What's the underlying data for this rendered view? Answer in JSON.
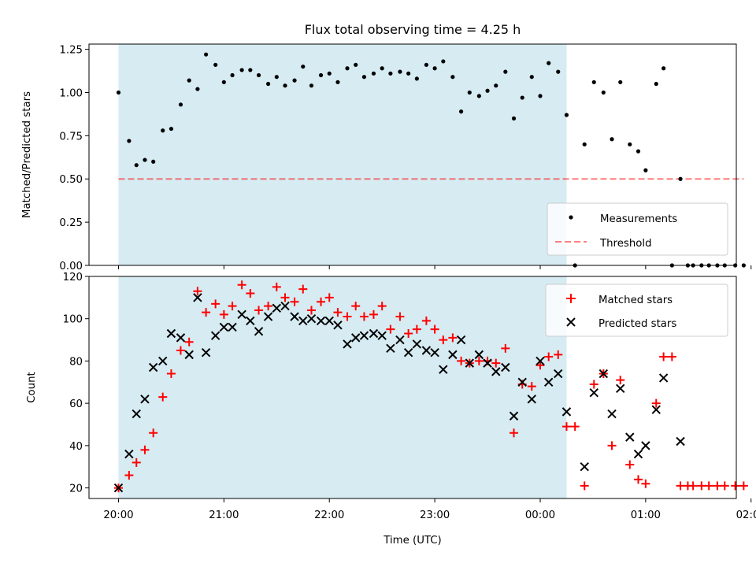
{
  "title": "Flux total observing time = 4.25 h",
  "colors": {
    "highlight": "#add8e6",
    "measurement": "#000000",
    "threshold": "#ff0000",
    "matched": "#ff0000",
    "predicted": "#000000"
  },
  "chart_data": [
    {
      "type": "scatter",
      "ylabel": "Matched/Predicted stars",
      "ylim": [
        0,
        1.28
      ],
      "yticks": [
        "0.00",
        "0.25",
        "0.50",
        "0.75",
        "1.00",
        "1.25"
      ],
      "ytick_values": [
        0,
        0.25,
        0.5,
        0.75,
        1.0,
        1.25
      ],
      "x_unit": "hours since 20:00 UTC",
      "xlim": [
        -0.28,
        5.86
      ],
      "highlight_span": [
        0.0,
        4.25
      ],
      "legend": {
        "placement": "lower-right",
        "entries": [
          "Measurements",
          "Threshold"
        ]
      },
      "threshold": {
        "name": "Threshold",
        "value": 0.5,
        "x_range": [
          0.0,
          5.93
        ]
      },
      "series": [
        {
          "name": "Measurements",
          "x": [
            0.0,
            0.1,
            0.17,
            0.25,
            0.33,
            0.42,
            0.5,
            0.59,
            0.67,
            0.75,
            0.83,
            0.92,
            1.0,
            1.08,
            1.17,
            1.25,
            1.33,
            1.42,
            1.5,
            1.58,
            1.67,
            1.75,
            1.83,
            1.92,
            2.0,
            2.08,
            2.17,
            2.25,
            2.33,
            2.42,
            2.5,
            2.58,
            2.67,
            2.75,
            2.83,
            2.92,
            3.0,
            3.08,
            3.17,
            3.25,
            3.33,
            3.42,
            3.5,
            3.58,
            3.67,
            3.75,
            3.83,
            3.92,
            4.0,
            4.08,
            4.17,
            4.25,
            4.33,
            4.42,
            4.51,
            4.6,
            4.68,
            4.76,
            4.85,
            4.93,
            5.0,
            5.1,
            5.17,
            5.25,
            5.33,
            5.4,
            5.45,
            5.53,
            5.6,
            5.68,
            5.75,
            5.85,
            5.93
          ],
          "y": [
            1.0,
            0.72,
            0.58,
            0.61,
            0.6,
            0.78,
            0.79,
            0.93,
            1.07,
            1.02,
            1.22,
            1.16,
            1.06,
            1.1,
            1.13,
            1.13,
            1.1,
            1.05,
            1.09,
            1.04,
            1.07,
            1.15,
            1.04,
            1.1,
            1.11,
            1.06,
            1.14,
            1.16,
            1.09,
            1.11,
            1.14,
            1.11,
            1.12,
            1.11,
            1.08,
            1.16,
            1.14,
            1.18,
            1.09,
            0.89,
            1.0,
            0.98,
            1.01,
            1.04,
            1.12,
            0.85,
            0.97,
            1.09,
            0.98,
            1.17,
            1.12,
            0.87,
            0.0,
            0.7,
            1.06,
            1.0,
            0.73,
            1.06,
            0.7,
            0.66,
            0.55,
            1.05,
            1.14,
            0.0,
            0.5,
            0.0,
            0.0,
            0.0,
            0.0,
            0.0,
            0.0,
            0.0,
            0.0
          ]
        }
      ]
    },
    {
      "type": "scatter",
      "ylabel": "Count",
      "xlabel": "Time (UTC)",
      "ylim": [
        15,
        120
      ],
      "yticks": [
        "20",
        "40",
        "60",
        "80",
        "100",
        "120"
      ],
      "ytick_values": [
        20,
        40,
        60,
        80,
        100,
        120
      ],
      "x_unit": "hours since 20:00 UTC",
      "xlim": [
        -0.28,
        5.86
      ],
      "xticks": [
        "20:00",
        "21:00",
        "22:00",
        "23:00",
        "00:00",
        "01:00",
        "02:00"
      ],
      "xtick_values": [
        0,
        1,
        2,
        3,
        4,
        5,
        6
      ],
      "highlight_span": [
        0.0,
        4.25
      ],
      "legend": {
        "placement": "upper-right",
        "entries": [
          "Matched stars",
          "Predicted stars"
        ]
      },
      "series": [
        {
          "name": "Matched stars",
          "marker": "+",
          "x": [
            0.0,
            0.1,
            0.17,
            0.25,
            0.33,
            0.42,
            0.5,
            0.59,
            0.67,
            0.75,
            0.83,
            0.92,
            1.0,
            1.08,
            1.17,
            1.25,
            1.33,
            1.42,
            1.5,
            1.58,
            1.67,
            1.75,
            1.83,
            1.92,
            2.0,
            2.08,
            2.17,
            2.25,
            2.33,
            2.42,
            2.5,
            2.58,
            2.67,
            2.75,
            2.83,
            2.92,
            3.0,
            3.08,
            3.17,
            3.25,
            3.33,
            3.42,
            3.5,
            3.58,
            3.67,
            3.75,
            3.83,
            3.92,
            4.0,
            4.08,
            4.17,
            4.25,
            4.33,
            4.42,
            4.51,
            4.6,
            4.68,
            4.76,
            4.85,
            4.93,
            5.0,
            5.1,
            5.17,
            5.25,
            5.33,
            5.4,
            5.45,
            5.53,
            5.6,
            5.68,
            5.75,
            5.85,
            5.93
          ],
          "y": [
            20,
            26,
            32,
            38,
            46,
            63,
            74,
            85,
            89,
            113,
            103,
            107,
            102,
            106,
            116,
            112,
            104,
            106,
            115,
            110,
            108,
            114,
            104,
            108,
            110,
            103,
            101,
            106,
            101,
            102,
            106,
            95,
            101,
            93,
            95,
            99,
            95,
            90,
            91,
            80,
            79,
            80,
            80,
            79,
            86,
            46,
            69,
            68,
            78,
            82,
            83,
            49,
            49,
            21,
            69,
            74,
            40,
            71,
            31,
            24,
            22,
            60,
            82,
            82,
            21,
            21,
            21,
            21,
            21,
            21,
            21,
            21,
            21
          ]
        },
        {
          "name": "Predicted stars",
          "marker": "x",
          "x": [
            0.0,
            0.1,
            0.17,
            0.25,
            0.33,
            0.42,
            0.5,
            0.59,
            0.67,
            0.75,
            0.83,
            0.92,
            1.0,
            1.08,
            1.17,
            1.25,
            1.33,
            1.42,
            1.5,
            1.58,
            1.67,
            1.75,
            1.83,
            1.92,
            2.0,
            2.08,
            2.17,
            2.25,
            2.33,
            2.42,
            2.5,
            2.58,
            2.67,
            2.75,
            2.83,
            2.92,
            3.0,
            3.08,
            3.17,
            3.25,
            3.33,
            3.42,
            3.5,
            3.58,
            3.67,
            3.75,
            3.83,
            3.92,
            4.0,
            4.08,
            4.17,
            4.25,
            4.42,
            4.51,
            4.6,
            4.68,
            4.76,
            4.85,
            4.93,
            5.0,
            5.1,
            5.17,
            5.33
          ],
          "y": [
            20,
            36,
            55,
            62,
            77,
            80,
            93,
            91,
            83,
            110,
            84,
            92,
            96,
            96,
            102,
            99,
            94,
            101,
            105,
            106,
            101,
            99,
            100,
            99,
            99,
            97,
            88,
            91,
            92,
            93,
            92,
            86,
            90,
            84,
            88,
            85,
            84,
            76,
            83,
            90,
            79,
            83,
            79,
            75,
            77,
            54,
            70,
            62,
            80,
            70,
            74,
            56,
            30,
            65,
            74,
            55,
            67,
            44,
            36,
            40,
            57,
            72,
            42
          ]
        }
      ]
    }
  ]
}
